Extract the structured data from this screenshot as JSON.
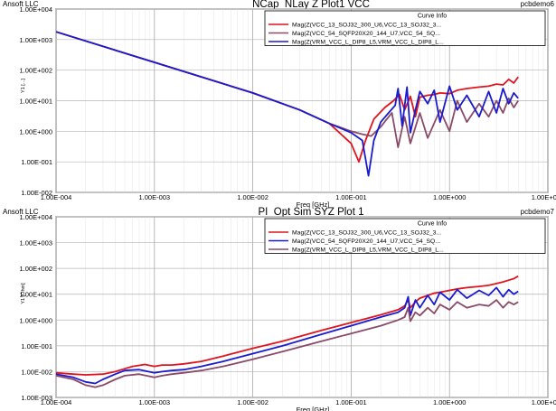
{
  "chart_data": [
    {
      "type": "line",
      "company": "Ansoft LLC",
      "title": "NCap_NLay Z Plot1 VCC",
      "project": "pcbdemo6",
      "xlabel": "Freq [GHz]",
      "ylabel": "Y1 [...]",
      "x_scale": "log",
      "y_scale": "log",
      "xlim": [
        0.0001,
        10
      ],
      "ylim": [
        0.01,
        10000
      ],
      "x_ticks": [
        "1.00E-004",
        "1.00E-003",
        "1.00E-002",
        "1.00E-001",
        "1.00E+000",
        "1.00E+001"
      ],
      "y_ticks": [
        "1.00E-002",
        "1.00E-001",
        "1.00E+000",
        "1.00E+001",
        "1.00E+002",
        "1.00E+003",
        "1.00E+004"
      ],
      "grid": true,
      "legend_title": "Curve Info",
      "legend_position": "top-right",
      "series": [
        {
          "name": "Mag(Z(VCC_13_SOJ32_300_U6,VCC_13_SOJ32_3...",
          "color": "#e0141e",
          "x": [
            0.0001,
            0.001,
            0.01,
            0.03,
            0.06,
            0.1,
            0.12,
            0.14,
            0.17,
            0.22,
            0.27,
            0.31,
            0.35,
            0.4,
            0.45,
            0.5,
            0.6,
            0.7,
            0.8,
            1,
            1.2,
            1.5,
            2,
            2.5,
            3,
            3.5,
            4,
            4.5,
            5
          ],
          "y": [
            1800,
            180,
            18,
            5,
            1.8,
            0.4,
            0.1,
            0.5,
            2.5,
            6,
            10,
            16,
            5,
            14,
            3,
            13,
            15,
            16,
            18,
            17,
            22,
            25,
            28,
            30,
            35,
            33,
            50,
            38,
            60
          ]
        },
        {
          "name": "Mag(Z(VCC_54_SQFP20X20_144_U7,VCC_54_SQ...",
          "color": "#8a4a68",
          "x": [
            0.0001,
            0.001,
            0.01,
            0.03,
            0.06,
            0.1,
            0.13,
            0.16,
            0.2,
            0.23,
            0.26,
            0.3,
            0.35,
            0.4,
            0.5,
            0.6,
            0.8,
            1,
            1.2,
            1.5,
            2,
            2.5,
            3,
            3.5,
            4,
            4.5,
            5
          ],
          "y": [
            1800,
            180,
            18,
            5,
            1.8,
            1.0,
            0.8,
            0.7,
            1.4,
            2.5,
            4,
            0.3,
            3,
            0.4,
            4,
            0.6,
            5,
            1,
            10,
            2,
            8,
            3,
            10,
            4,
            12,
            6,
            10
          ]
        },
        {
          "name": "Mag(Z(VRM_VCC_L_DIP8_L5,VRM_VCC_L_DIP8_L...",
          "color": "#1a1ad0",
          "x": [
            0.0001,
            0.001,
            0.01,
            0.03,
            0.06,
            0.1,
            0.13,
            0.15,
            0.17,
            0.2,
            0.24,
            0.28,
            0.3,
            0.33,
            0.37,
            0.4,
            0.45,
            0.5,
            0.6,
            0.7,
            0.8,
            1,
            1.2,
            1.5,
            2,
            2.5,
            3,
            3.5,
            4,
            4.5,
            5
          ],
          "y": [
            1800,
            180,
            18,
            5,
            1.8,
            0.9,
            0.5,
            0.035,
            0.5,
            2,
            4,
            7,
            25,
            1.5,
            28,
            0.9,
            5,
            20,
            8,
            22,
            2,
            30,
            5,
            15,
            3,
            20,
            4,
            25,
            8,
            18,
            12
          ]
        }
      ]
    },
    {
      "type": "line",
      "company": "Ansoft LLC",
      "title": "PI_Opt Sim SYZ Plot 1",
      "project": "pcbdemo7",
      "xlabel": "Freq [GHz]",
      "ylabel": "Y1 [Ohm]",
      "x_scale": "log",
      "y_scale": "log",
      "xlim": [
        0.0001,
        10
      ],
      "ylim": [
        0.001,
        10000
      ],
      "x_ticks": [
        "1.00E-004",
        "1.00E-003",
        "1.00E-002",
        "1.00E-001",
        "1.00E+000",
        "1.00E+001"
      ],
      "y_ticks": [
        "1.00E-003",
        "1.00E-002",
        "1.00E-001",
        "1.00E+000",
        "1.00E+001",
        "1.00E+002",
        "1.00E+003",
        "1.00E+004"
      ],
      "grid": true,
      "legend_title": "Curve Info",
      "legend_position": "top-right",
      "series": [
        {
          "name": "Mag(Z(VCC_13_SOJ32_300_U6,VCC_13_SOJ32_3...",
          "color": "#e0141e",
          "x": [
            0.0001,
            0.00015,
            0.0002,
            0.0003,
            0.0004,
            0.0005,
            0.0006,
            0.0008,
            0.001,
            0.0012,
            0.0015,
            0.002,
            0.003,
            0.005,
            0.01,
            0.02,
            0.05,
            0.1,
            0.2,
            0.3,
            0.35,
            0.38,
            0.4,
            0.45,
            0.5,
            0.6,
            0.7,
            0.8,
            1,
            1.2,
            1.5,
            2,
            2.5,
            3,
            3.5,
            4,
            4.5,
            5
          ],
          "y": [
            0.009,
            0.008,
            0.0075,
            0.008,
            0.01,
            0.013,
            0.016,
            0.019,
            0.016,
            0.018,
            0.018,
            0.02,
            0.025,
            0.04,
            0.08,
            0.15,
            0.4,
            0.8,
            1.6,
            2.5,
            3.5,
            6,
            3,
            5,
            7,
            9,
            11,
            12,
            14,
            16,
            18,
            20,
            22,
            26,
            30,
            35,
            40,
            50
          ]
        },
        {
          "name": "Mag(Z(VCC_54_SQFP20X20_144_U7,VCC_54_SQ...",
          "color": "#1a1ad0",
          "x": [
            0.0001,
            0.00015,
            0.0002,
            0.00025,
            0.0003,
            0.0004,
            0.0005,
            0.0007,
            0.001,
            0.0012,
            0.0015,
            0.002,
            0.003,
            0.005,
            0.01,
            0.02,
            0.05,
            0.1,
            0.2,
            0.3,
            0.35,
            0.38,
            0.4,
            0.45,
            0.5,
            0.6,
            0.7,
            0.8,
            1,
            1.2,
            1.5,
            2,
            2.5,
            3,
            3.5,
            4,
            4.5,
            5
          ],
          "y": [
            0.008,
            0.006,
            0.004,
            0.0035,
            0.005,
            0.008,
            0.011,
            0.012,
            0.009,
            0.01,
            0.011,
            0.012,
            0.016,
            0.025,
            0.05,
            0.1,
            0.28,
            0.6,
            1.3,
            2,
            3,
            8,
            1.5,
            6,
            3,
            9,
            4,
            12,
            6,
            15,
            7,
            14,
            9,
            18,
            8,
            15,
            10,
            13
          ]
        },
        {
          "name": "Mag(Z(VRM_VCC_L_DIP8_L5,VRM_VCC_L_DIP8_L...",
          "color": "#8a4a68",
          "x": [
            0.0001,
            0.00015,
            0.0002,
            0.00025,
            0.0003,
            0.0004,
            0.0005,
            0.0007,
            0.001,
            0.0012,
            0.0015,
            0.002,
            0.003,
            0.005,
            0.01,
            0.02,
            0.05,
            0.1,
            0.2,
            0.3,
            0.35,
            0.38,
            0.4,
            0.45,
            0.5,
            0.6,
            0.7,
            0.8,
            1,
            1.2,
            1.5,
            2,
            2.5,
            3,
            3.5,
            4,
            4.5,
            5
          ],
          "y": [
            0.007,
            0.005,
            0.003,
            0.0025,
            0.003,
            0.005,
            0.007,
            0.008,
            0.006,
            0.007,
            0.008,
            0.009,
            0.011,
            0.016,
            0.03,
            0.06,
            0.15,
            0.3,
            0.6,
            1,
            1.3,
            3,
            0.9,
            2,
            1.5,
            3,
            1.8,
            4,
            2.5,
            5,
            3,
            4,
            3.5,
            6,
            3,
            5,
            4,
            5
          ]
        }
      ]
    }
  ]
}
